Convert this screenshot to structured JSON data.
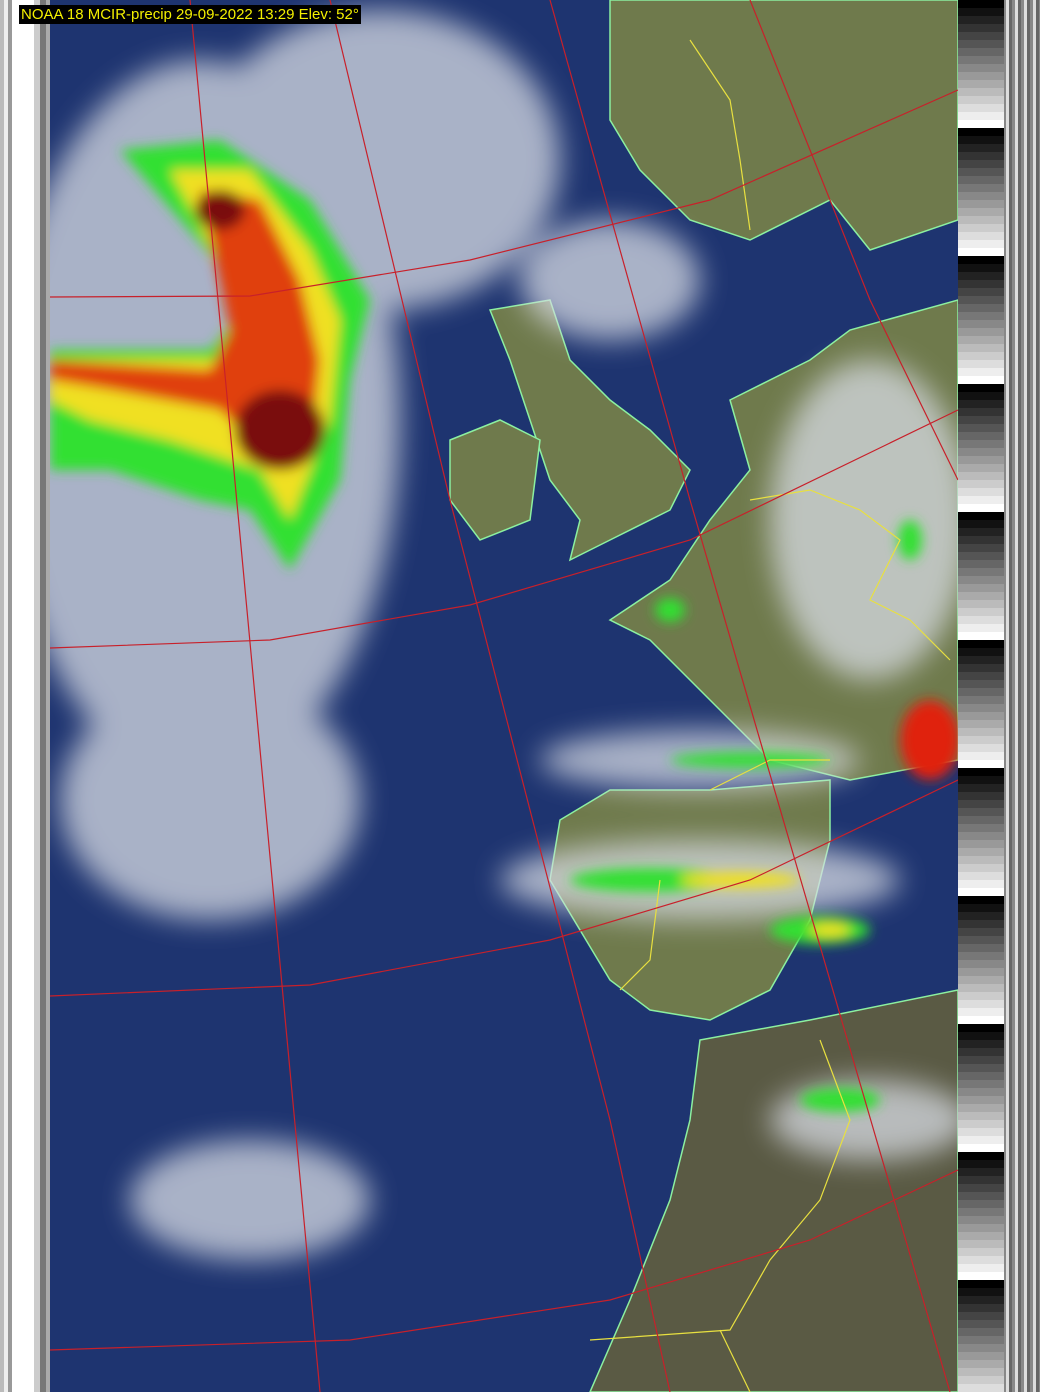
{
  "header": {
    "title": "NOAA 18 MCIR-precip 29-09-2022 13:29 Elev: 52°"
  },
  "colors": {
    "ocean": "#1e3470",
    "land": "#6f7a4c",
    "cloud": "#d8dce4",
    "graticule": "#c8202a",
    "coastline": "#8cf0a0",
    "borders": "#e8e040",
    "precip_light": "#30e030",
    "precip_mid": "#f0e020",
    "precip_heavy": "#c01010",
    "title_text": "#f4f000"
  }
}
